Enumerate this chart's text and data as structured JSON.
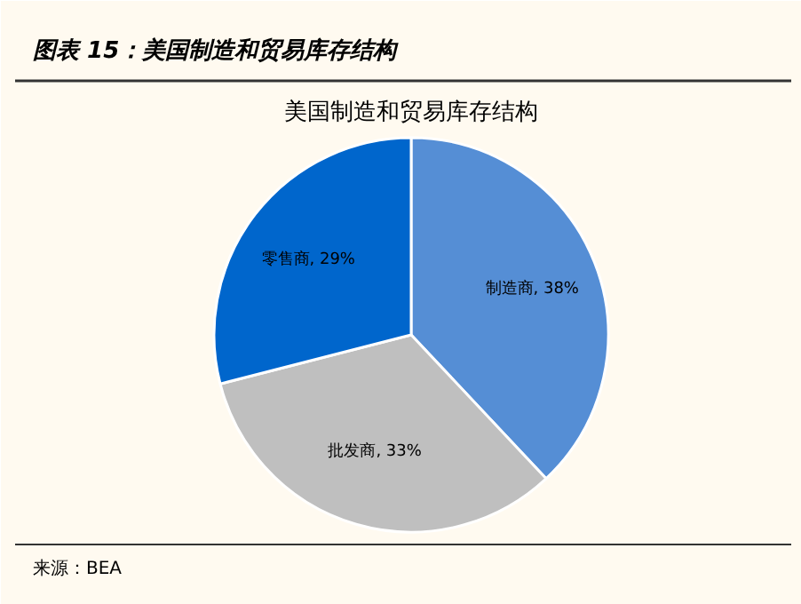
{
  "chart_data": {
    "type": "pie",
    "title": "图表 15：美国制造和贸易库存结构",
    "subtitle": "美国制造和贸易库存结构",
    "categories": [
      "制造商",
      "批发商",
      "零售商"
    ],
    "values": [
      38,
      33,
      29
    ],
    "colors": [
      "#558ed5",
      "#bfbfbf",
      "#0066cc"
    ],
    "value_labels": [
      "38%",
      "33%",
      "29%"
    ],
    "annotations": [
      "来源：BEA"
    ]
  }
}
